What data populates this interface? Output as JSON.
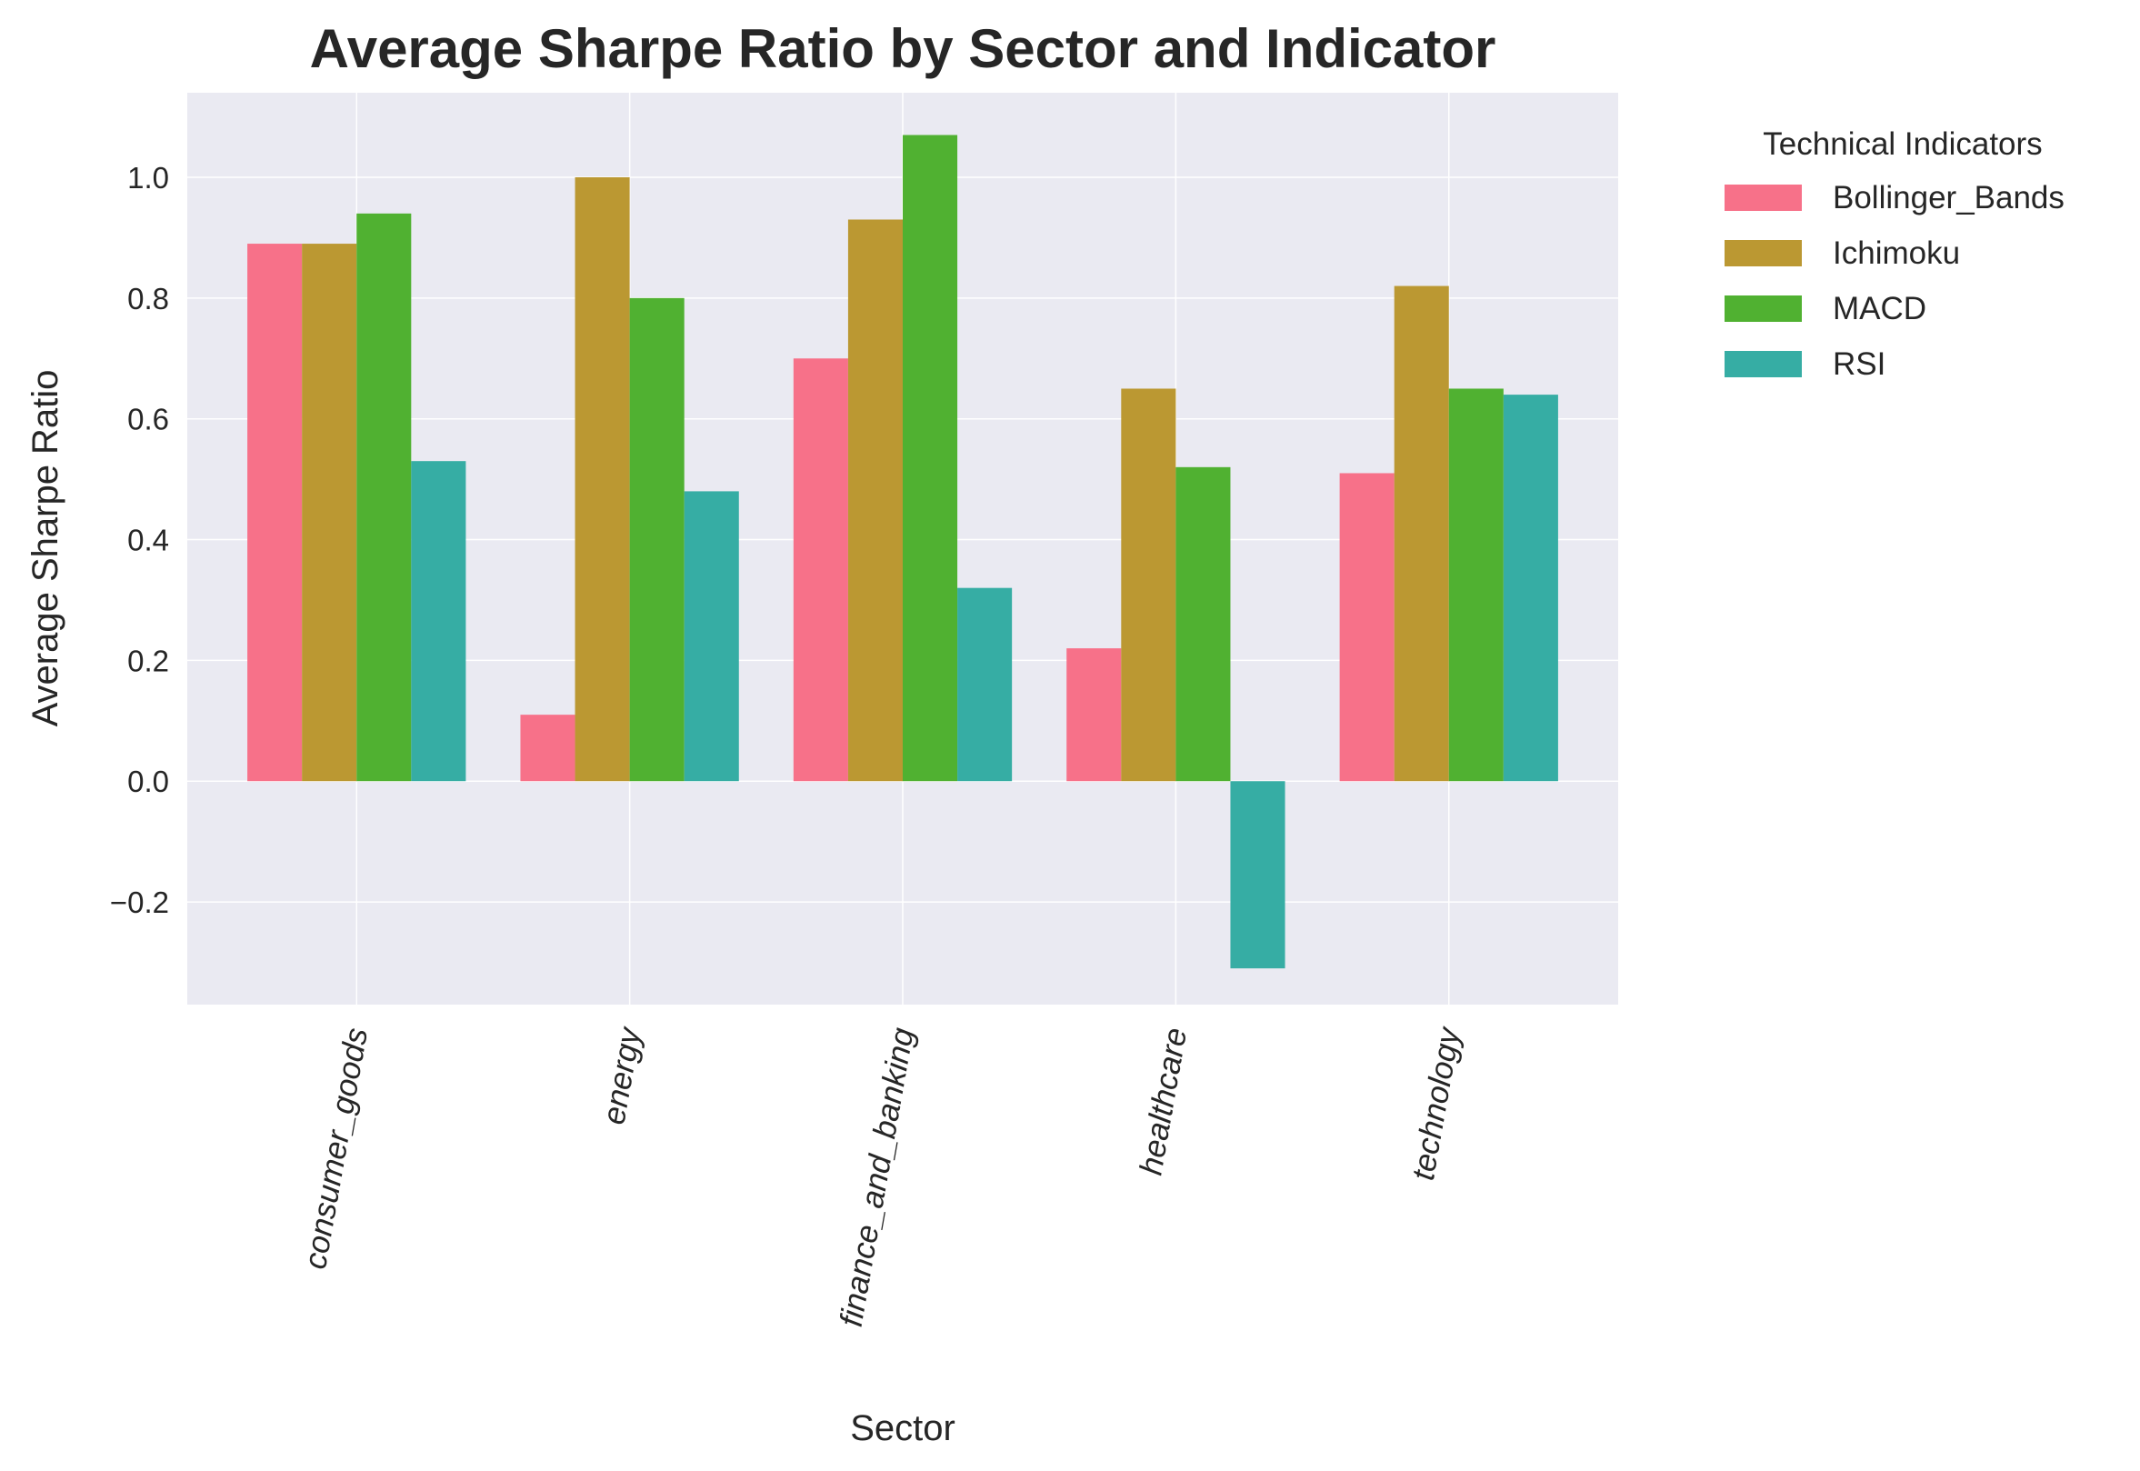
{
  "chart_data": {
    "type": "bar",
    "title": "Average Sharpe Ratio by Sector and Indicator",
    "xlabel": "Sector",
    "ylabel": "Average Sharpe Ratio",
    "categories": [
      "consumer_goods",
      "energy",
      "finance_and_banking",
      "healthcare",
      "technology"
    ],
    "series": [
      {
        "name": "Bollinger_Bands",
        "color": "#f77189",
        "values": [
          0.89,
          0.11,
          0.7,
          0.22,
          0.51
        ]
      },
      {
        "name": "Ichimoku",
        "color": "#bb9832",
        "values": [
          0.89,
          1.0,
          0.93,
          0.65,
          0.82
        ]
      },
      {
        "name": "MACD",
        "color": "#50b131",
        "values": [
          0.94,
          0.8,
          1.07,
          0.52,
          0.65
        ]
      },
      {
        "name": "RSI",
        "color": "#36ada4",
        "values": [
          0.53,
          0.48,
          0.32,
          -0.31,
          0.64
        ]
      }
    ],
    "ylim": [
      -0.37,
      1.14
    ],
    "yticks": [
      -0.2,
      0.0,
      0.2,
      0.4,
      0.6,
      0.8,
      1.0
    ],
    "ytick_labels": [
      "−0.2",
      "0.0",
      "0.2",
      "0.4",
      "0.6",
      "0.8",
      "1.0"
    ],
    "grid": true,
    "legend": {
      "title": "Technical Indicators",
      "placement": "outside-top-right"
    },
    "colors": {
      "plot_background": "#eaeaf2",
      "grid": "#ffffff",
      "text": "#262626"
    }
  }
}
